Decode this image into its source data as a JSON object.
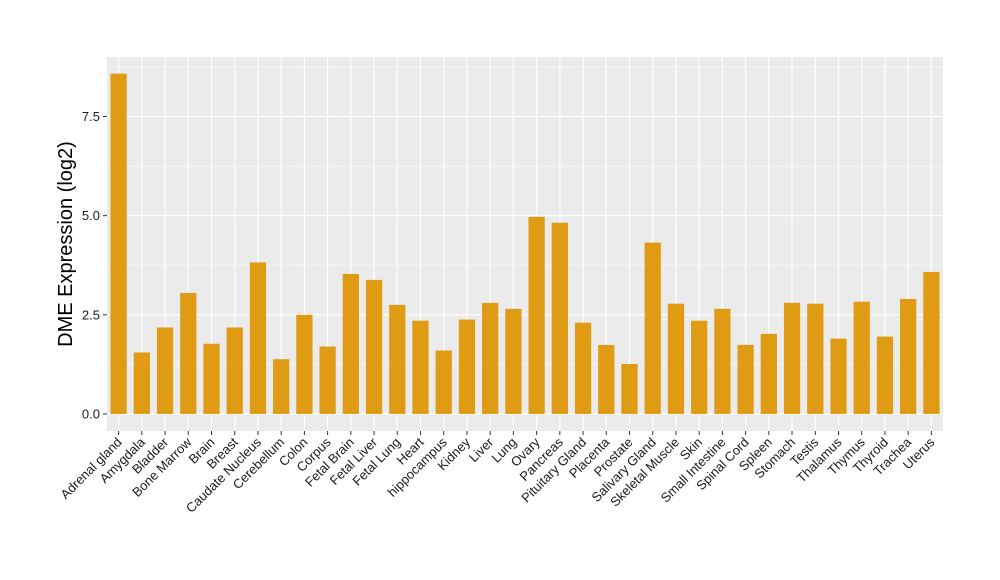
{
  "chart_data": {
    "type": "bar",
    "title": "",
    "xlabel": "",
    "ylabel": "DME Expression (log2)",
    "categories": [
      "Adrenal gland",
      "Amygdala",
      "Bladder",
      "Bone Marrow",
      "Brain",
      "Breast",
      "Caudate Nucleus",
      "Cerebellum",
      "Colon",
      "Corpus",
      "Fetal Brain",
      "Fetal Liver",
      "Fetal Lung",
      "Heart",
      "hippocampus",
      "Kidney",
      "Liver",
      "Lung",
      "Ovary",
      "Pancreas",
      "Pituitary Gland",
      "Placenta",
      "Prostate",
      "Salivary Gland",
      "Skeletal Muscle",
      "Skin",
      "Small Intestine",
      "Spinal Cord",
      "Spleen",
      "Stomach",
      "Testis",
      "Thalamus",
      "Thymus",
      "Thyroid",
      "Trachea",
      "Uterus"
    ],
    "values": [
      8.58,
      1.55,
      2.18,
      3.05,
      1.77,
      2.18,
      3.82,
      1.38,
      2.5,
      1.7,
      3.53,
      3.38,
      2.75,
      2.35,
      1.6,
      2.38,
      2.8,
      2.65,
      4.97,
      4.82,
      2.3,
      1.74,
      1.26,
      4.32,
      2.78,
      2.35,
      2.65,
      1.74,
      2.02,
      2.8,
      2.78,
      1.9,
      2.83,
      1.95,
      2.9,
      3.58
    ],
    "yticks": [
      "0.0",
      "2.5",
      "5.0",
      "7.5"
    ],
    "ytick_values": [
      0,
      2.5,
      5.0,
      7.5
    ],
    "ylim": [
      -0.43,
      9.0
    ],
    "grid": true,
    "colors": {
      "bar": "#E09B15",
      "panel": "#EBEBEB",
      "grid": "#FFFFFF"
    }
  }
}
